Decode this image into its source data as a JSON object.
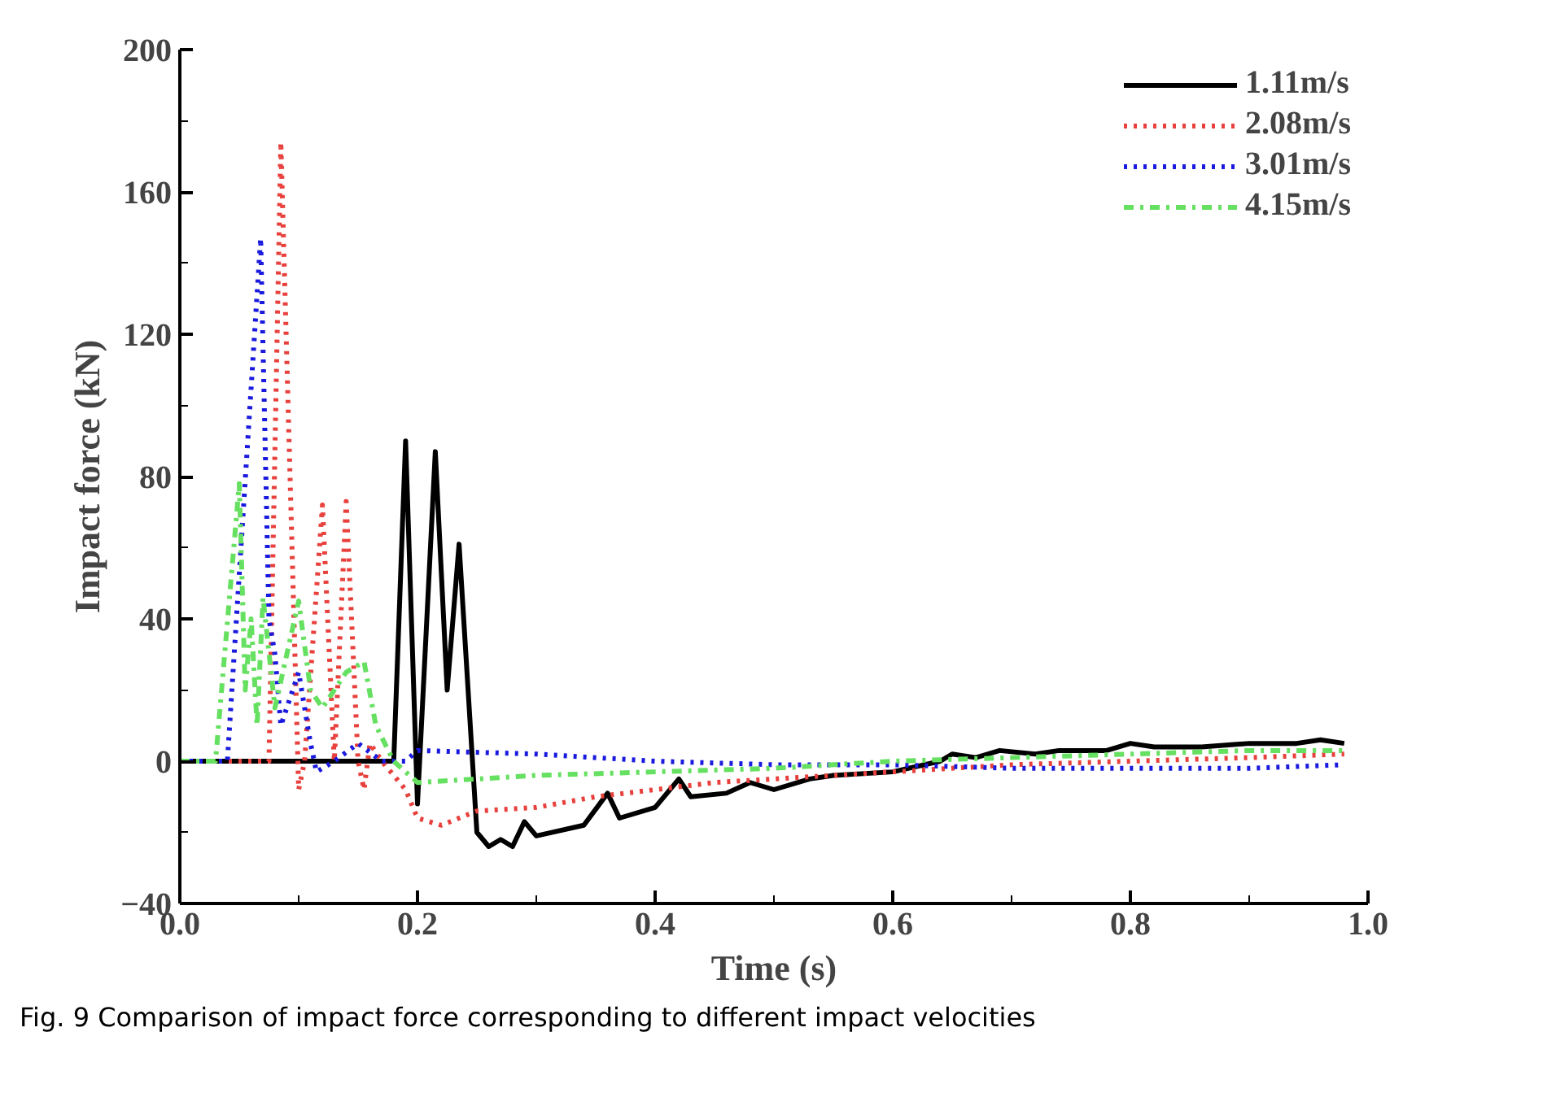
{
  "chart_data": {
    "type": "line",
    "xlabel": "Time (s)",
    "ylabel": "Impact force (kN)",
    "xlim": [
      0.0,
      1.0
    ],
    "xticks": [
      {
        "value": 0,
        "label": "0.0"
      },
      0.2,
      0.4,
      0.6,
      0.8,
      {
        "value": 1,
        "label": "1.0"
      }
    ],
    "ylim": [
      -40,
      200
    ],
    "yticks": [
      -40,
      0,
      40,
      80,
      120,
      160,
      200
    ],
    "grid": false,
    "legend": "top right",
    "annotations": [
      "Fig. 9 Comparison of impact force corresponding to different impact velocities"
    ],
    "series": [
      {
        "name": "1.11m/s",
        "color": "#000000",
        "line_style": "solid",
        "x": [
          0,
          0.18,
          0.19,
          0.2,
          0.215,
          0.225,
          0.235,
          0.25,
          0.26,
          0.27,
          0.28,
          0.29,
          0.3,
          0.34,
          0.36,
          0.37,
          0.4,
          0.42,
          0.43,
          0.46,
          0.48,
          0.5,
          0.53,
          0.55,
          0.6,
          0.64,
          0.65,
          0.67,
          0.69,
          0.72,
          0.74,
          0.78,
          0.8,
          0.82,
          0.86,
          0.9,
          0.94,
          0.96,
          0.98
        ],
        "values": [
          0,
          0,
          90,
          -12,
          87,
          20,
          61,
          -20,
          -24,
          -22,
          -24,
          -17,
          -21,
          -18,
          -9,
          -16,
          -13,
          -5,
          -10,
          -9,
          -6,
          -8,
          -5,
          -4,
          -3,
          0,
          2,
          1,
          3,
          2,
          3,
          3,
          5,
          4,
          4,
          5,
          5,
          6,
          5
        ]
      },
      {
        "name": "2.08m/s",
        "color": "#e8403c",
        "line_style": "dotted",
        "x": [
          0,
          0.075,
          0.085,
          0.1,
          0.105,
          0.12,
          0.13,
          0.14,
          0.15,
          0.155,
          0.16,
          0.17,
          0.19,
          0.2,
          0.22,
          0.25,
          0.3,
          0.35,
          0.4,
          0.45,
          0.5,
          0.6,
          0.7,
          0.8,
          0.9,
          0.98
        ],
        "values": [
          0,
          0,
          174,
          -8,
          0,
          72,
          0,
          73,
          0,
          -8,
          5,
          0,
          -8,
          -16,
          -18,
          -14,
          -13,
          -10,
          -8,
          -6,
          -5,
          -3,
          -1,
          0,
          1,
          2
        ]
      },
      {
        "name": "3.01m/s",
        "color": "#1a1adf",
        "line_style": "dotted",
        "x": [
          0,
          0.04,
          0.068,
          0.075,
          0.08,
          0.085,
          0.09,
          0.1,
          0.11,
          0.115,
          0.13,
          0.15,
          0.17,
          0.19,
          0.2,
          0.3,
          0.4,
          0.5,
          0.6,
          0.7,
          0.8,
          0.9,
          0.98
        ],
        "values": [
          0,
          0,
          147,
          40,
          30,
          10,
          15,
          25,
          5,
          -3,
          0,
          5,
          0,
          0,
          3,
          2,
          0,
          -1,
          -1,
          -2,
          -2,
          -2,
          -1
        ]
      },
      {
        "name": "4.15m/s",
        "color": "#66e060",
        "line_style": "dashdot",
        "x": [
          0,
          0.03,
          0.05,
          0.055,
          0.06,
          0.065,
          0.07,
          0.08,
          0.09,
          0.1,
          0.11,
          0.12,
          0.14,
          0.155,
          0.165,
          0.18,
          0.2,
          0.25,
          0.3,
          0.4,
          0.5,
          0.6,
          0.7,
          0.8,
          0.9,
          0.98
        ],
        "values": [
          0,
          0,
          78,
          20,
          40,
          10,
          46,
          15,
          30,
          45,
          20,
          15,
          25,
          28,
          10,
          0,
          -6,
          -5,
          -4,
          -3,
          -2,
          0,
          1,
          2,
          3,
          3
        ]
      }
    ]
  }
}
